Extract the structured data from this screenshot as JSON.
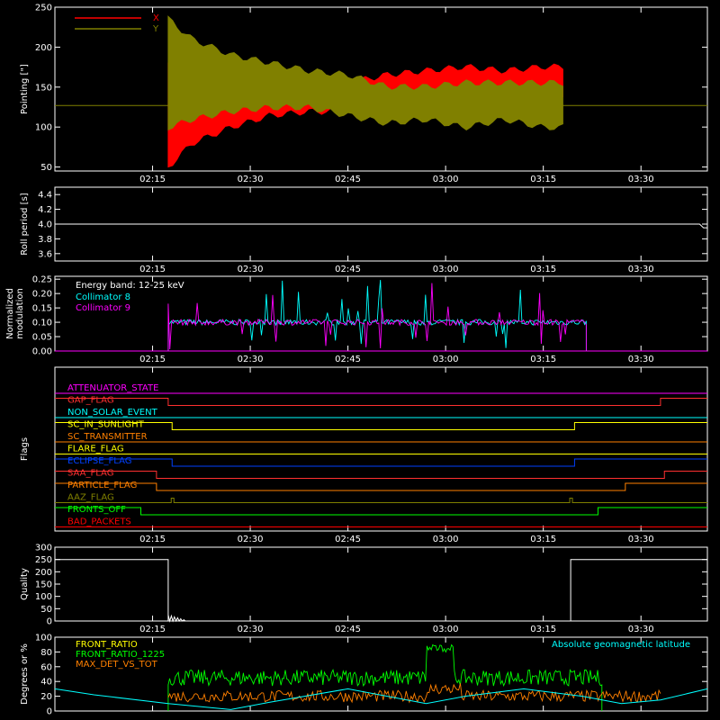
{
  "chart_data": [
    {
      "type": "line",
      "ylabel": "Pointing [\"]",
      "ylim": [
        45,
        250
      ],
      "yticks": [
        50,
        100,
        150,
        200,
        250
      ],
      "xlim": [
        2.0,
        3.67
      ],
      "xticks": [
        {
          "x": 2.25,
          "label": "02:15"
        },
        {
          "x": 2.5,
          "label": "02:30"
        },
        {
          "x": 2.75,
          "label": "02:45"
        },
        {
          "x": 3.0,
          "label": "03:00"
        },
        {
          "x": 3.25,
          "label": "03:15"
        },
        {
          "x": 3.5,
          "label": "03:30"
        }
      ],
      "legend": {
        "placement": "top-left"
      },
      "series": [
        {
          "name": "X",
          "color": "#ff0000",
          "envelope": [
            [
              2.29,
              50,
              180
            ],
            [
              2.35,
              80,
              165
            ],
            [
              2.45,
              100,
              160
            ],
            [
              2.55,
              115,
              155
            ],
            [
              2.65,
              120,
              150
            ],
            [
              2.75,
              120,
              155
            ],
            [
              2.85,
              135,
              165
            ],
            [
              2.95,
              130,
              170
            ],
            [
              3.05,
              140,
              175
            ],
            [
              3.15,
              130,
              170
            ],
            [
              3.25,
              140,
              175
            ],
            [
              3.3,
              135,
              175
            ]
          ]
        },
        {
          "name": "Y",
          "color": "#808000",
          "envelope": [
            [
              2.29,
              100,
              235
            ],
            [
              2.35,
              110,
              210
            ],
            [
              2.45,
              120,
              190
            ],
            [
              2.55,
              125,
              180
            ],
            [
              2.65,
              125,
              170
            ],
            [
              2.75,
              115,
              165
            ],
            [
              2.85,
              105,
              150
            ],
            [
              2.95,
              110,
              150
            ],
            [
              3.05,
              100,
              155
            ],
            [
              3.15,
              110,
              155
            ],
            [
              3.25,
              100,
              155
            ],
            [
              3.3,
              100,
              155
            ]
          ]
        }
      ],
      "baseline": 127
    },
    {
      "type": "line",
      "ylabel": "Roll period [s]",
      "ylim": [
        3.5,
        4.5
      ],
      "yticks": [
        3.6,
        3.8,
        4.0,
        4.2,
        4.4
      ],
      "series": [
        {
          "color": "#ffffff",
          "x": [
            2.0,
            3.65,
            3.66,
            3.67
          ],
          "y": [
            4.0,
            4.0,
            3.95,
            3.95
          ]
        }
      ]
    },
    {
      "type": "line",
      "ylabel": "Normalized modulation",
      "ylim": [
        0,
        0.26
      ],
      "yticks": [
        0.0,
        0.05,
        0.1,
        0.15,
        0.2,
        0.25
      ],
      "annotation": "Energy band: 12-25 keV",
      "series": [
        {
          "name": "Collimator 8",
          "color": "#00ffff",
          "x_range": [
            2.29,
            3.36
          ],
          "base": 0.1
        },
        {
          "name": "Collimator 9",
          "color": "#ff00ff",
          "x_range": [
            2.29,
            3.36
          ],
          "base": 0.1
        }
      ]
    },
    {
      "type": "line",
      "ylabel": "Flags",
      "series": [
        {
          "name": "ATTENUATOR_STATE",
          "color": "#ff00ff",
          "steps": []
        },
        {
          "name": "GAP_FLAG",
          "color": "#ff3030",
          "steps": [
            [
              2.29,
              1
            ],
            [
              3.55,
              0
            ]
          ]
        },
        {
          "name": "NON_SOLAR_EVENT",
          "color": "#00ffff",
          "steps": []
        },
        {
          "name": "SC_IN_SUNLIGHT",
          "color": "#ffff00",
          "steps": [
            [
              2.3,
              1
            ],
            [
              3.33,
              0
            ]
          ]
        },
        {
          "name": "SC_TRANSMITTER",
          "color": "#ff8000",
          "steps": []
        },
        {
          "name": "FLARE_FLAG",
          "color": "#ffff00",
          "steps": []
        },
        {
          "name": "ECLIPSE_FLAG",
          "color": "#0040ff",
          "steps": [
            [
              2.3,
              1
            ],
            [
              3.33,
              0
            ]
          ]
        },
        {
          "name": "SAA_FLAG",
          "color": "#ff3030",
          "steps": [
            [
              2.26,
              1
            ],
            [
              3.56,
              0
            ]
          ]
        },
        {
          "name": "PARTICLE_FLAG",
          "color": "#ff8000",
          "steps": [
            [
              2.26,
              1
            ],
            [
              3.46,
              0
            ]
          ]
        },
        {
          "name": "AAZ_FLAG",
          "color": "#808000",
          "spikes": [
            2.3,
            3.32
          ]
        },
        {
          "name": "FRONTS_OFF",
          "color": "#00ff00",
          "steps": [
            [
              2.22,
              1
            ],
            [
              3.39,
              0
            ]
          ]
        },
        {
          "name": "BAD_PACKETS",
          "color": "#ff0000",
          "steps": []
        }
      ]
    },
    {
      "type": "line",
      "ylabel": "Quality",
      "ylim": [
        0,
        300
      ],
      "yticks": [
        0,
        50,
        100,
        150,
        200,
        250,
        300
      ],
      "series": [
        {
          "color": "#ffffff",
          "x": [
            2.0,
            2.29,
            2.29,
            3.32,
            3.32,
            3.67
          ],
          "y": [
            250,
            250,
            0,
            0,
            250,
            250
          ]
        }
      ]
    },
    {
      "type": "line",
      "ylabel": "Degrees or %",
      "ylim": [
        0,
        100
      ],
      "yticks": [
        0,
        20,
        40,
        60,
        80,
        100
      ],
      "annotation": "Absolute geomagnetic latitude",
      "series": [
        {
          "name": "FRONT_RATIO",
          "color": "#ffff00"
        },
        {
          "name": "FRONT_RATIO_1225",
          "color": "#00ff00",
          "x_range": [
            2.29,
            3.4
          ],
          "base": 45,
          "spike": [
            2.95,
            3.02,
            85
          ]
        },
        {
          "name": "MAX_DET_VS_TOT",
          "color": "#ff8000",
          "x_range": [
            2.29,
            3.55
          ],
          "base": 20
        },
        {
          "name": "Absolute geomagnetic latitude",
          "color": "#00ffff",
          "x": [
            2.0,
            2.1,
            2.29,
            2.45,
            2.55,
            2.75,
            2.95,
            3.05,
            3.2,
            3.35,
            3.45,
            3.55,
            3.67
          ],
          "y": [
            30,
            22,
            10,
            2,
            12,
            30,
            10,
            20,
            30,
            20,
            10,
            15,
            30
          ]
        }
      ]
    }
  ]
}
